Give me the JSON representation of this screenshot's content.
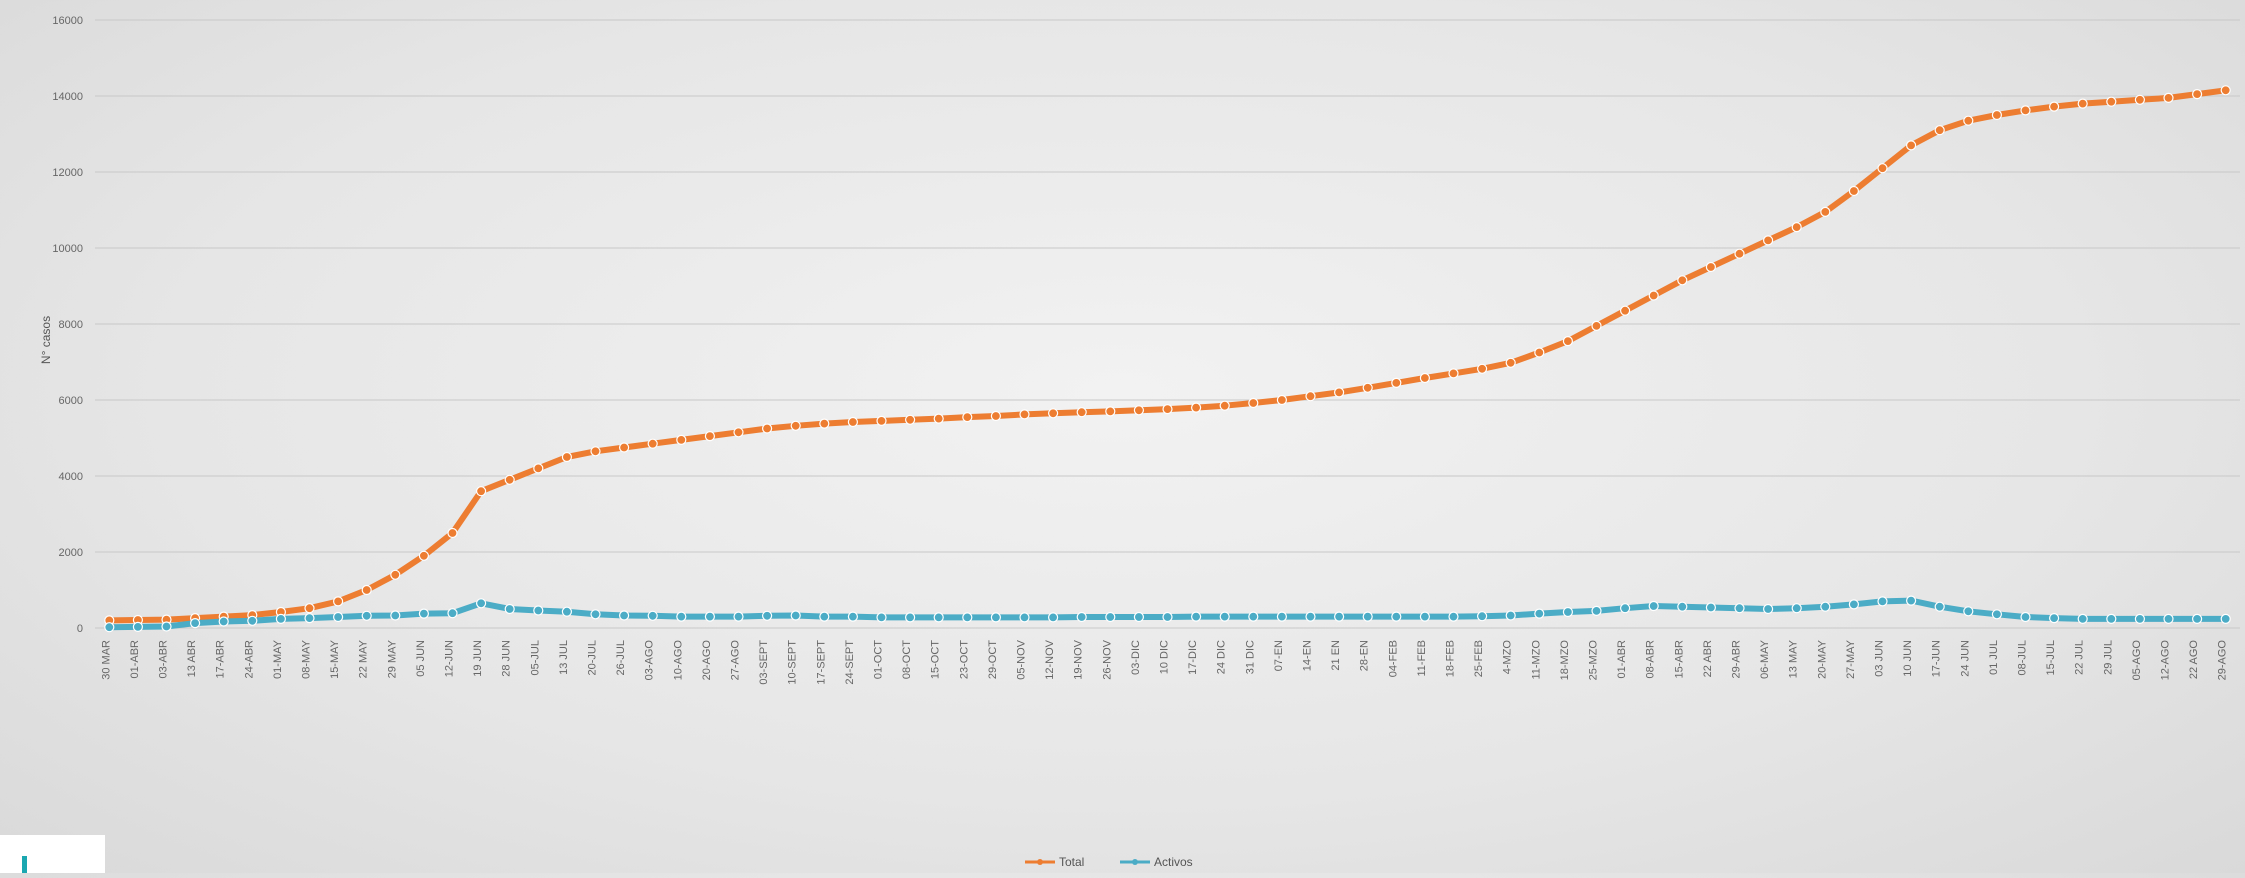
{
  "chart_data": {
    "type": "line",
    "title": "",
    "xlabel": "",
    "ylabel": "N° casos",
    "ylim": [
      0,
      16000
    ],
    "yticks": [
      0,
      2000,
      4000,
      6000,
      8000,
      10000,
      12000,
      14000,
      16000
    ],
    "grid": true,
    "legend": "bottom-center",
    "x_tick_labels": [
      "30 MAR",
      "01-ABR",
      "03-ABR",
      "13 ABR",
      "17-ABR",
      "24-ABR",
      "01-MAY",
      "08-MAY",
      "15-MAY",
      "22 MAY",
      "29 MAY",
      "05 JUN",
      "12-JUN",
      "19 JUN",
      "28 JUN",
      "05-JUL",
      "13 JUL",
      "20-JUL",
      "26-JUL",
      "03-AGO",
      "10-AGO",
      "20-AGO",
      "27-AGO",
      "03-SEPT",
      "10-SEPT",
      "17-SEPT",
      "24-SEPT",
      "01-OCT",
      "08-OCT",
      "15-OCT",
      "23-OCT",
      "29-OCT",
      "05-NOV",
      "12-NOV",
      "19-NOV",
      "26-NOV",
      "03-DIC",
      "10 DIC",
      "17-DIC",
      "24 DIC",
      "31 DIC",
      "07-EN",
      "14-EN",
      "21 EN",
      "28-EN",
      "04-FEB",
      "11-FEB",
      "18-FEB",
      "25-FEB",
      "4-MZO",
      "11-MZO",
      "18-MZO",
      "25-MZO",
      "01-ABR",
      "08-ABR",
      "15-ABR",
      "22 ABR",
      "29-ABR",
      "06-MAY",
      "13 MAY",
      "20-MAY",
      "27-MAY",
      "03 JUN",
      "10 JUN",
      "17-JUN",
      "24 JUN",
      "01 JUL",
      "08-JUL",
      "15-JUL",
      "22 JUL",
      "29 JUL",
      "05-AGO",
      "12-AGO",
      "22 AGO",
      "29-AGO"
    ],
    "series": [
      {
        "name": "Total",
        "color": "#ed7d31",
        "values": [
          200,
          210,
          220,
          260,
          300,
          340,
          420,
          520,
          700,
          1000,
          1400,
          1900,
          2500,
          3600,
          3900,
          4200,
          4500,
          4650,
          4750,
          4850,
          4950,
          5050,
          5150,
          5250,
          5320,
          5380,
          5420,
          5450,
          5480,
          5510,
          5550,
          5580,
          5620,
          5650,
          5680,
          5700,
          5730,
          5760,
          5800,
          5850,
          5920,
          6000,
          6100,
          6200,
          6320,
          6450,
          6580,
          6700,
          6820,
          6980,
          7250,
          7550,
          7950,
          8350,
          8750,
          9150,
          9500,
          9850,
          10200,
          10550,
          10950,
          11500,
          12100,
          12700,
          13100,
          13350,
          13500,
          13620,
          13720,
          13800,
          13850,
          13900,
          13950,
          14050,
          14150
        ]
      },
      {
        "name": "Activos",
        "color": "#4bacc6",
        "values": [
          20,
          30,
          40,
          130,
          170,
          190,
          240,
          260,
          290,
          320,
          330,
          380,
          390,
          650,
          500,
          460,
          430,
          360,
          330,
          320,
          300,
          300,
          300,
          320,
          330,
          300,
          300,
          280,
          280,
          280,
          280,
          280,
          280,
          280,
          290,
          290,
          290,
          290,
          300,
          300,
          300,
          300,
          300,
          300,
          300,
          300,
          300,
          300,
          310,
          330,
          380,
          420,
          450,
          520,
          580,
          560,
          540,
          520,
          500,
          520,
          560,
          620,
          700,
          720,
          560,
          440,
          360,
          290,
          260,
          240,
          240,
          240,
          240,
          240,
          240
        ]
      }
    ]
  }
}
